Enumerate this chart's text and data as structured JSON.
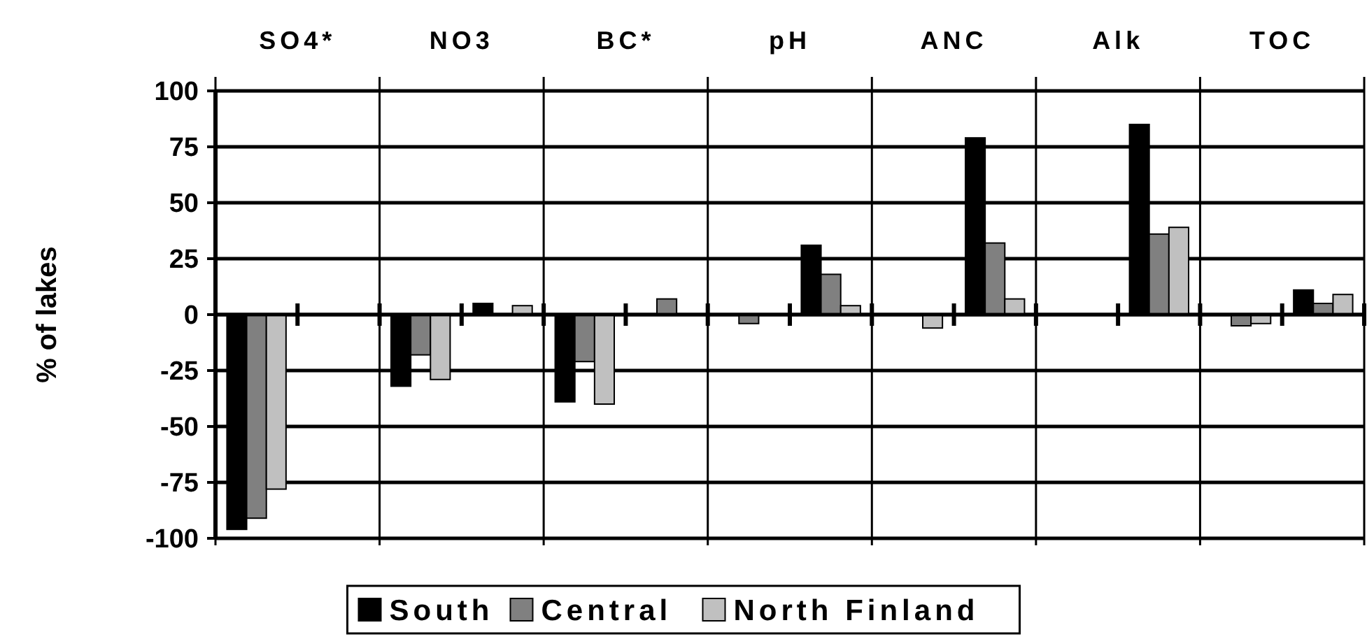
{
  "chart_data": {
    "type": "bar",
    "categories": [
      "SO4*",
      "NO3",
      "BC*",
      "pH",
      "ANC",
      "Alk",
      "TOC"
    ],
    "ylabel": "% of lakes",
    "ylim": [
      -100,
      100
    ],
    "yticks": [
      -100,
      -75,
      -50,
      -25,
      0,
      25,
      50,
      75,
      100
    ],
    "grid": true,
    "legend": "bottom",
    "series": [
      {
        "name": "South",
        "color": "#000000",
        "values": [
          -96,
          -32,
          -39,
          null,
          null,
          null,
          null
        ]
      },
      {
        "name": "Central",
        "color": "#808080",
        "values": [
          -91,
          -18,
          -21,
          -4,
          null,
          null,
          -5
        ]
      },
      {
        "name": "North Finland",
        "color": "#c0c0c0",
        "values": [
          -78,
          -29,
          -40,
          null,
          -6,
          null,
          -4
        ]
      },
      {
        "color": "#000000",
        "values": [
          null,
          5,
          null,
          31,
          79,
          85,
          11
        ]
      },
      {
        "color": "#808080",
        "values": [
          null,
          null,
          7,
          18,
          32,
          36,
          5
        ]
      },
      {
        "color": "#c0c0c0",
        "values": [
          null,
          4,
          null,
          4,
          7,
          39,
          9
        ]
      }
    ]
  }
}
